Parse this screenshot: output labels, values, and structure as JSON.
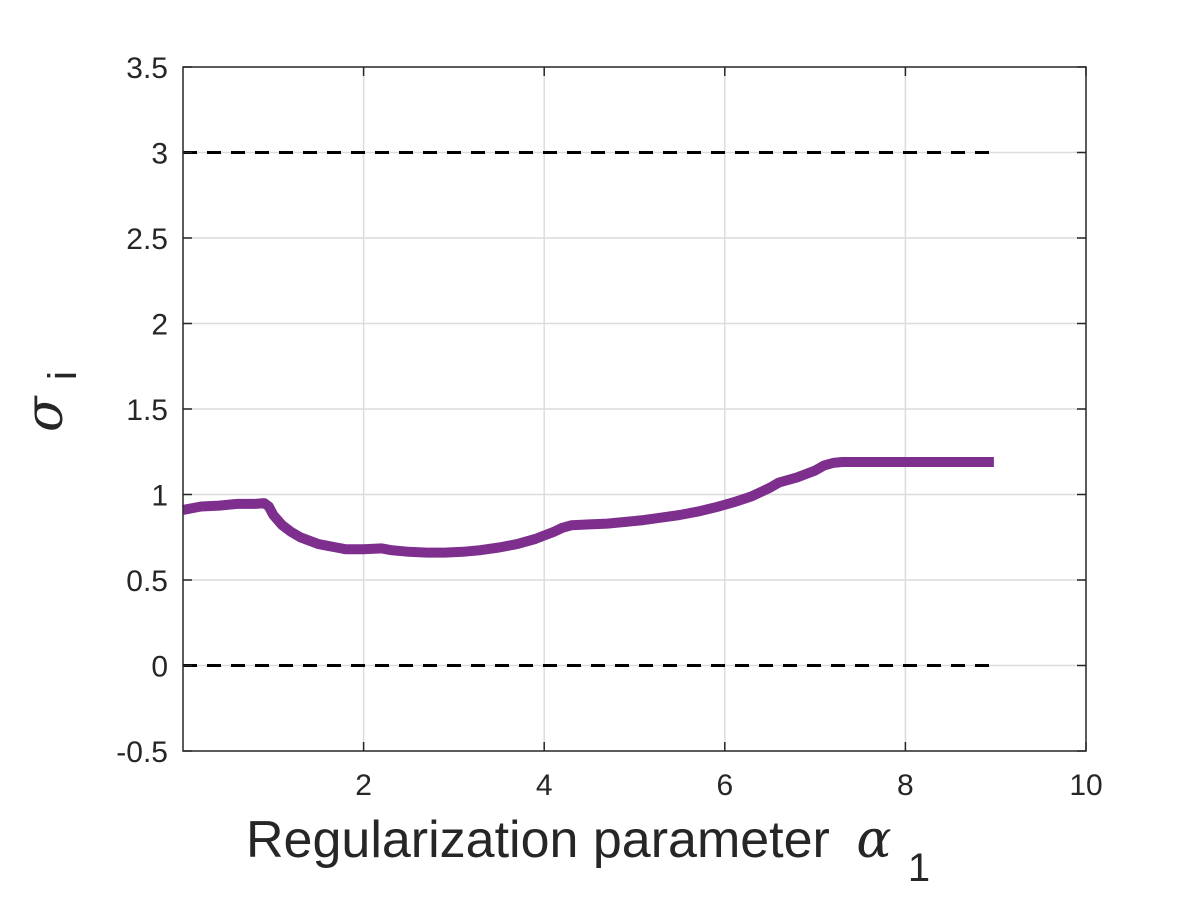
{
  "chart_data": {
    "type": "line",
    "title": "",
    "xlabel": {
      "text": "Regularization parameter",
      "symbol": "α",
      "subscript": "1"
    },
    "ylabel": {
      "symbol": "σ",
      "subscript": "i"
    },
    "xlim": [
      0,
      10
    ],
    "ylim": [
      -0.5,
      3.5
    ],
    "xticks": [
      2,
      4,
      6,
      8,
      10
    ],
    "xtick_labels": [
      "2",
      "4",
      "6",
      "8",
      "10"
    ],
    "yticks": [
      -0.5,
      0,
      0.5,
      1,
      1.5,
      2,
      2.5,
      3,
      3.5
    ],
    "ytick_labels": [
      "-0.5",
      "0",
      "0.5",
      "1",
      "1.5",
      "2",
      "2.5",
      "3",
      "3.5"
    ],
    "grid": true,
    "series": [
      {
        "color": "#7E2F8E",
        "x": [
          0.0,
          0.2,
          0.4,
          0.6,
          0.8,
          0.9,
          0.95,
          1.0,
          1.1,
          1.2,
          1.3,
          1.4,
          1.5,
          1.6,
          1.7,
          1.8,
          2.0,
          2.2,
          2.3,
          2.5,
          2.7,
          2.9,
          3.1,
          3.3,
          3.5,
          3.7,
          3.9,
          4.0,
          4.1,
          4.2,
          4.3,
          4.5,
          4.7,
          4.9,
          5.1,
          5.3,
          5.5,
          5.7,
          5.9,
          6.1,
          6.3,
          6.5,
          6.6,
          6.8,
          7.0,
          7.1,
          7.2,
          7.3,
          7.5,
          7.8,
          8.1,
          8.4,
          8.7,
          8.98
        ],
        "y": [
          0.91,
          0.93,
          0.935,
          0.945,
          0.945,
          0.95,
          0.93,
          0.88,
          0.82,
          0.78,
          0.75,
          0.73,
          0.71,
          0.7,
          0.69,
          0.68,
          0.68,
          0.685,
          0.675,
          0.665,
          0.66,
          0.66,
          0.665,
          0.675,
          0.69,
          0.71,
          0.74,
          0.76,
          0.78,
          0.805,
          0.82,
          0.825,
          0.83,
          0.84,
          0.85,
          0.865,
          0.88,
          0.9,
          0.925,
          0.955,
          0.99,
          1.04,
          1.07,
          1.1,
          1.14,
          1.17,
          1.185,
          1.19,
          1.19,
          1.19,
          1.19,
          1.19,
          1.19,
          1.19
        ]
      }
    ],
    "reference_lines": [
      {
        "y": 3,
        "x_range": [
          0,
          9
        ],
        "style": "dashed",
        "color": "#000000"
      },
      {
        "y": 0,
        "x_range": [
          0,
          9
        ],
        "style": "dashed",
        "color": "#000000"
      }
    ]
  }
}
